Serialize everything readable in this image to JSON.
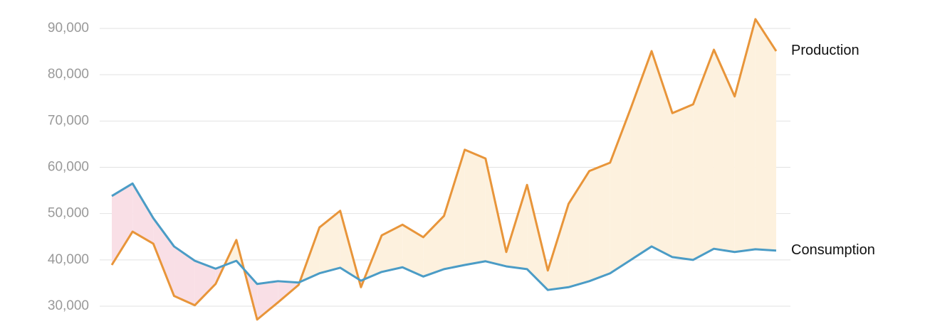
{
  "chart_data": {
    "type": "line",
    "categories": [
      null,
      null,
      null,
      null,
      null,
      null,
      null,
      null,
      null,
      null,
      null,
      null,
      null,
      null,
      null,
      null,
      null,
      null,
      null,
      null,
      null,
      null,
      null,
      null,
      null,
      null,
      null,
      null,
      null,
      null,
      null,
      null,
      null
    ],
    "series": [
      {
        "name": "Production",
        "color": "#e8953a",
        "values": [
          38900,
          46100,
          43500,
          32200,
          30200,
          34800,
          44300,
          27100,
          30800,
          34600,
          47000,
          50600,
          34100,
          45300,
          47600,
          44900,
          49500,
          63800,
          61900,
          41700,
          56200,
          37700,
          52100,
          59200,
          61000,
          72800,
          85100,
          71700,
          73600,
          85400,
          75300,
          92000,
          85100
        ]
      },
      {
        "name": "Consumption",
        "color": "#4b9cc6",
        "values": [
          53800,
          56500,
          49000,
          42900,
          39800,
          38100,
          39800,
          34800,
          35400,
          35100,
          37100,
          38300,
          35500,
          37400,
          38400,
          36400,
          38000,
          38900,
          39700,
          38600,
          38000,
          33500,
          34100,
          35400,
          37100,
          40000,
          42900,
          40600,
          40000,
          42400,
          41700,
          42300,
          42000
        ]
      }
    ],
    "surplus_color": "#fdf1de",
    "deficit_color": "#f9dfe6",
    "ylim": [
      26000,
      93000
    ],
    "yticks": [
      {
        "value": 30000,
        "label": "30,000"
      },
      {
        "value": 40000,
        "label": "40,000"
      },
      {
        "value": 50000,
        "label": "50,000"
      },
      {
        "value": 60000,
        "label": "60,000"
      },
      {
        "value": 70000,
        "label": "70,000"
      },
      {
        "value": 80000,
        "label": "80,000"
      },
      {
        "value": 90000,
        "label": "90,000"
      }
    ],
    "grid": true
  }
}
